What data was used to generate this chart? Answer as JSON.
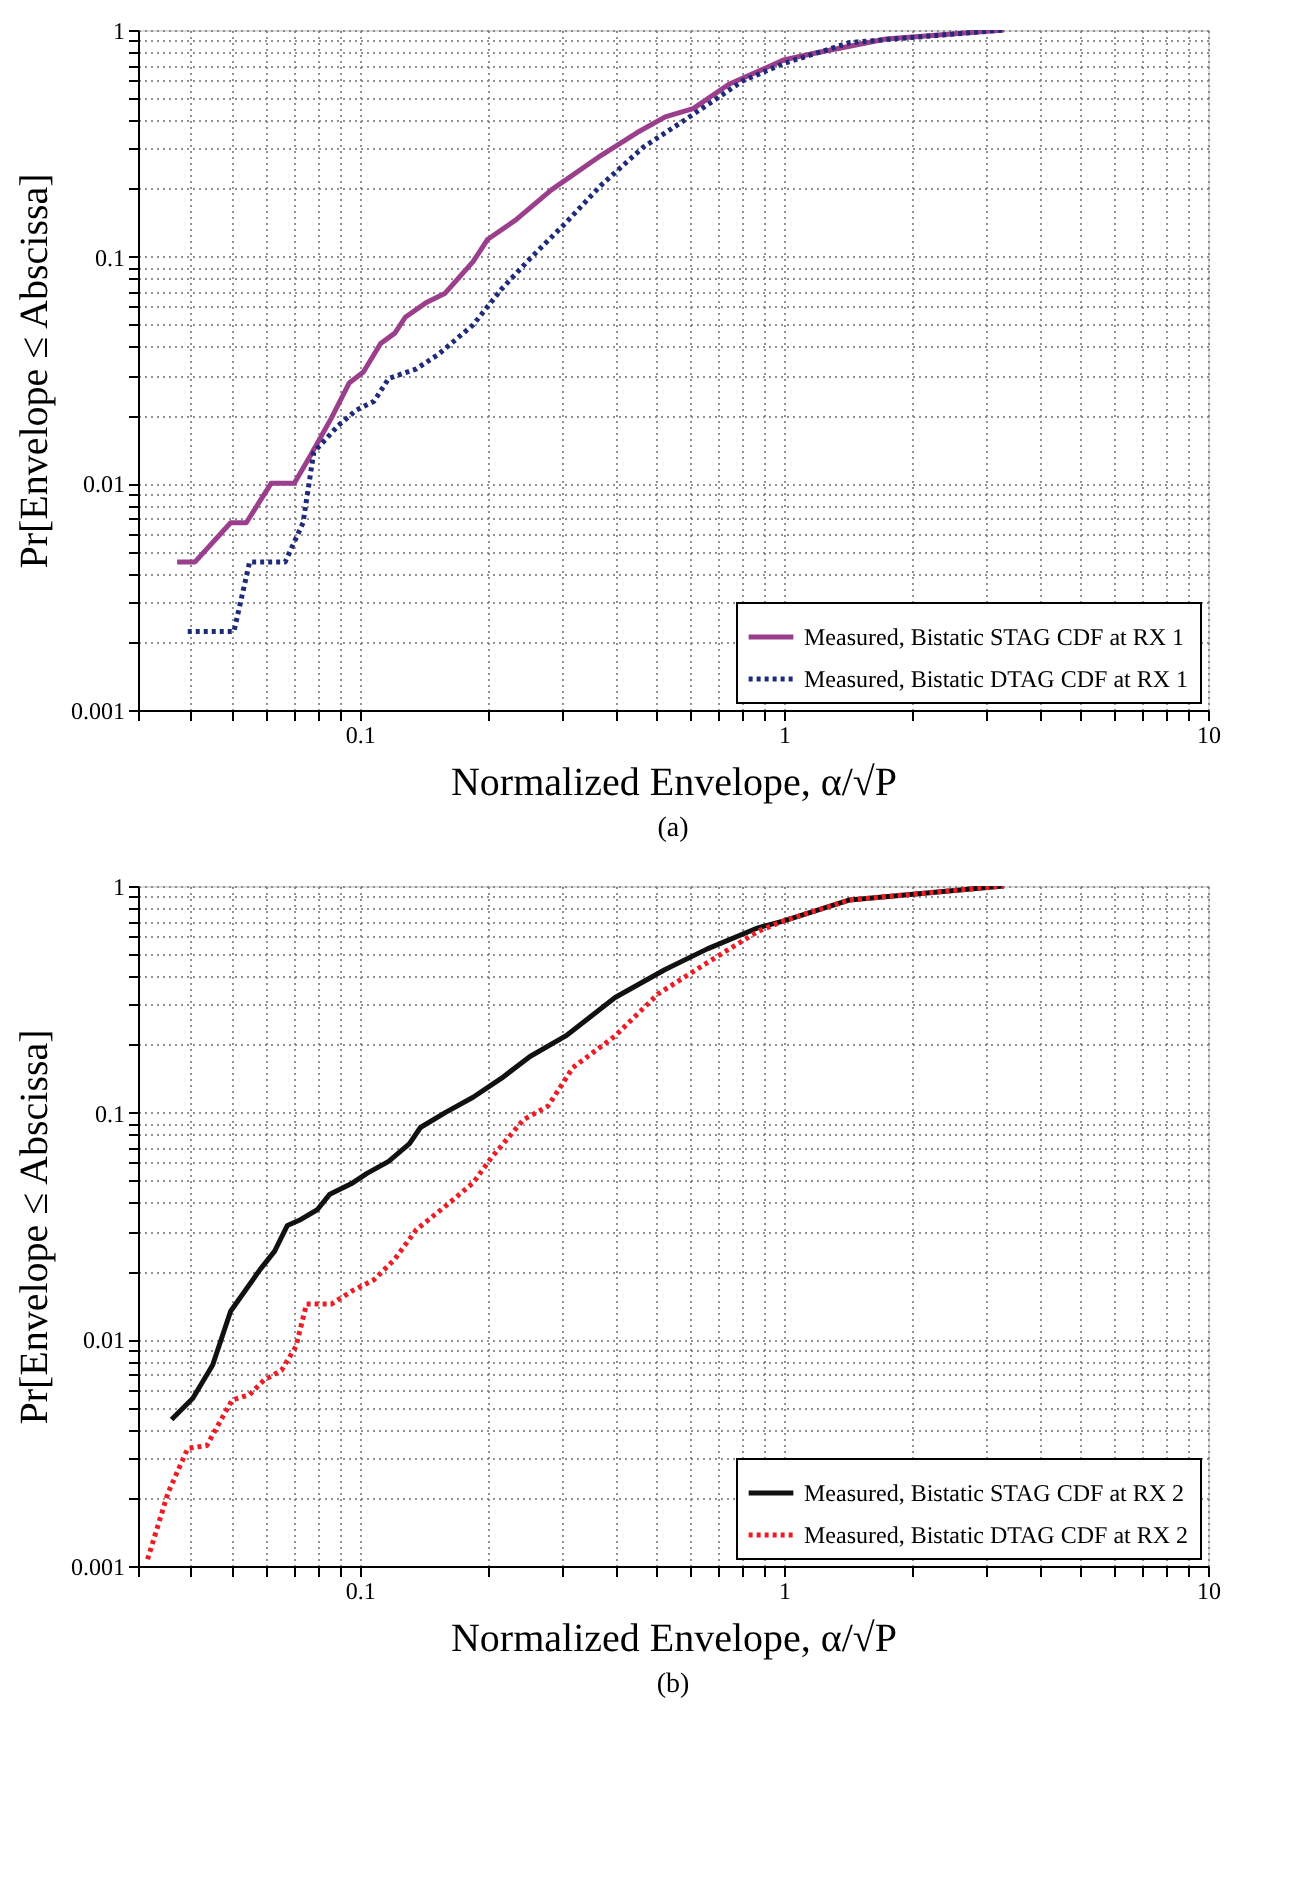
{
  "chart_data": [
    {
      "type": "line",
      "title": "(a)",
      "xlabel": "Normalized Envelope, α/√P",
      "ylabel": "Pr[Envelope ≤ Abscissa]",
      "log": "xy",
      "xlim": [
        0.03,
        10
      ],
      "ylim": [
        0.001,
        1
      ],
      "xticks": [
        0.1,
        1,
        10
      ],
      "yticks": [
        0.001,
        0.01,
        0.1,
        1
      ],
      "grid": true,
      "legend": "bottom right",
      "marker": "none",
      "series": [
        {
          "name": "Measured, Bistatic STAG CDF at RX 1",
          "color": "#9b3f8c",
          "line_style": "solid",
          "x": [
            0.0371,
            0.0409,
            0.0496,
            0.054,
            0.0618,
            0.0701,
            0.0764,
            0.0857,
            0.0944,
            0.102,
            0.112,
            0.121,
            0.128,
            0.144,
            0.159,
            0.185,
            0.2,
            0.233,
            0.283,
            0.371,
            0.45,
            0.525,
            0.611,
            0.742,
            1,
            1.18,
            1.74,
            3.3
          ],
          "values": [
            0.0045,
            0.0045,
            0.0067,
            0.0067,
            0.01,
            0.01,
            0.0132,
            0.0194,
            0.0277,
            0.031,
            0.0414,
            0.046,
            0.054,
            0.063,
            0.069,
            0.095,
            0.119,
            0.145,
            0.197,
            0.28,
            0.352,
            0.414,
            0.45,
            0.576,
            0.738,
            0.79,
            0.912,
            1
          ]
        },
        {
          "name": "Measured, Bistatic DTAG CDF at RX 1",
          "color": "#1f2a7a",
          "line_style": "dotted",
          "x": [
            0.0393,
            0.0505,
            0.055,
            0.0667,
            0.0735,
            0.0779,
            0.089,
            0.098,
            0.108,
            0.117,
            0.136,
            0.153,
            0.185,
            0.216,
            0.252,
            0.306,
            0.371,
            0.467,
            0.589,
            0.801,
            1,
            1.43,
            3.3
          ],
          "values": [
            0.00222,
            0.00222,
            0.0045,
            0.0045,
            0.0067,
            0.0137,
            0.018,
            0.021,
            0.023,
            0.029,
            0.032,
            0.037,
            0.05,
            0.072,
            0.098,
            0.141,
            0.207,
            0.305,
            0.405,
            0.597,
            0.712,
            0.88,
            1
          ]
        }
      ]
    },
    {
      "type": "line",
      "title": "(b)",
      "xlabel": "Normalized Envelope, α/√P",
      "ylabel": "Pr[Envelope ≤ Abscissa]",
      "log": "xy",
      "xlim": [
        0.03,
        10
      ],
      "ylim": [
        0.001,
        1
      ],
      "xticks": [
        0.1,
        1,
        10
      ],
      "yticks": [
        0.001,
        0.01,
        0.1,
        1
      ],
      "grid": true,
      "legend": "bottom right",
      "marker": "none",
      "series": [
        {
          "name": "Measured, Bistatic STAG CDF at RX 2",
          "color": "#111111",
          "line_style": "solid",
          "x": [
            0.036,
            0.0404,
            0.045,
            0.0496,
            0.0583,
            0.063,
            0.0675,
            0.072,
            0.0794,
            0.085,
            0.0962,
            0.104,
            0.117,
            0.131,
            0.139,
            0.159,
            0.185,
            0.216,
            0.252,
            0.306,
            0.4,
            0.525,
            0.66,
            0.869,
            1,
            1.43,
            3.3
          ],
          "values": [
            0.00443,
            0.0055,
            0.0077,
            0.0133,
            0.0204,
            0.0245,
            0.0318,
            0.0335,
            0.0373,
            0.0437,
            0.049,
            0.054,
            0.061,
            0.073,
            0.086,
            0.1,
            0.117,
            0.142,
            0.177,
            0.218,
            0.322,
            0.428,
            0.528,
            0.654,
            0.702,
            0.868,
            1
          ]
        },
        {
          "name": "Measured, Bistatic DTAG CDF at RX 2",
          "color": "#ee1c25",
          "line_style": "dotted",
          "x": [
            0.0316,
            0.0353,
            0.0393,
            0.0436,
            0.05,
            0.055,
            0.0594,
            0.0654,
            0.0707,
            0.0749,
            0.0857,
            0.0962,
            0.108,
            0.121,
            0.136,
            0.159,
            0.185,
            0.204,
            0.243,
            0.278,
            0.318,
            0.4,
            0.505,
            0.66,
            0.869,
            1,
            1.43,
            3.3
          ],
          "values": [
            0.00107,
            0.0021,
            0.0033,
            0.0034,
            0.0054,
            0.0057,
            0.0066,
            0.0073,
            0.0093,
            0.0143,
            0.0143,
            0.0164,
            0.0183,
            0.0226,
            0.0305,
            0.0386,
            0.049,
            0.063,
            0.093,
            0.107,
            0.158,
            0.218,
            0.334,
            0.459,
            0.631,
            0.702,
            0.868,
            1
          ]
        }
      ]
    }
  ]
}
